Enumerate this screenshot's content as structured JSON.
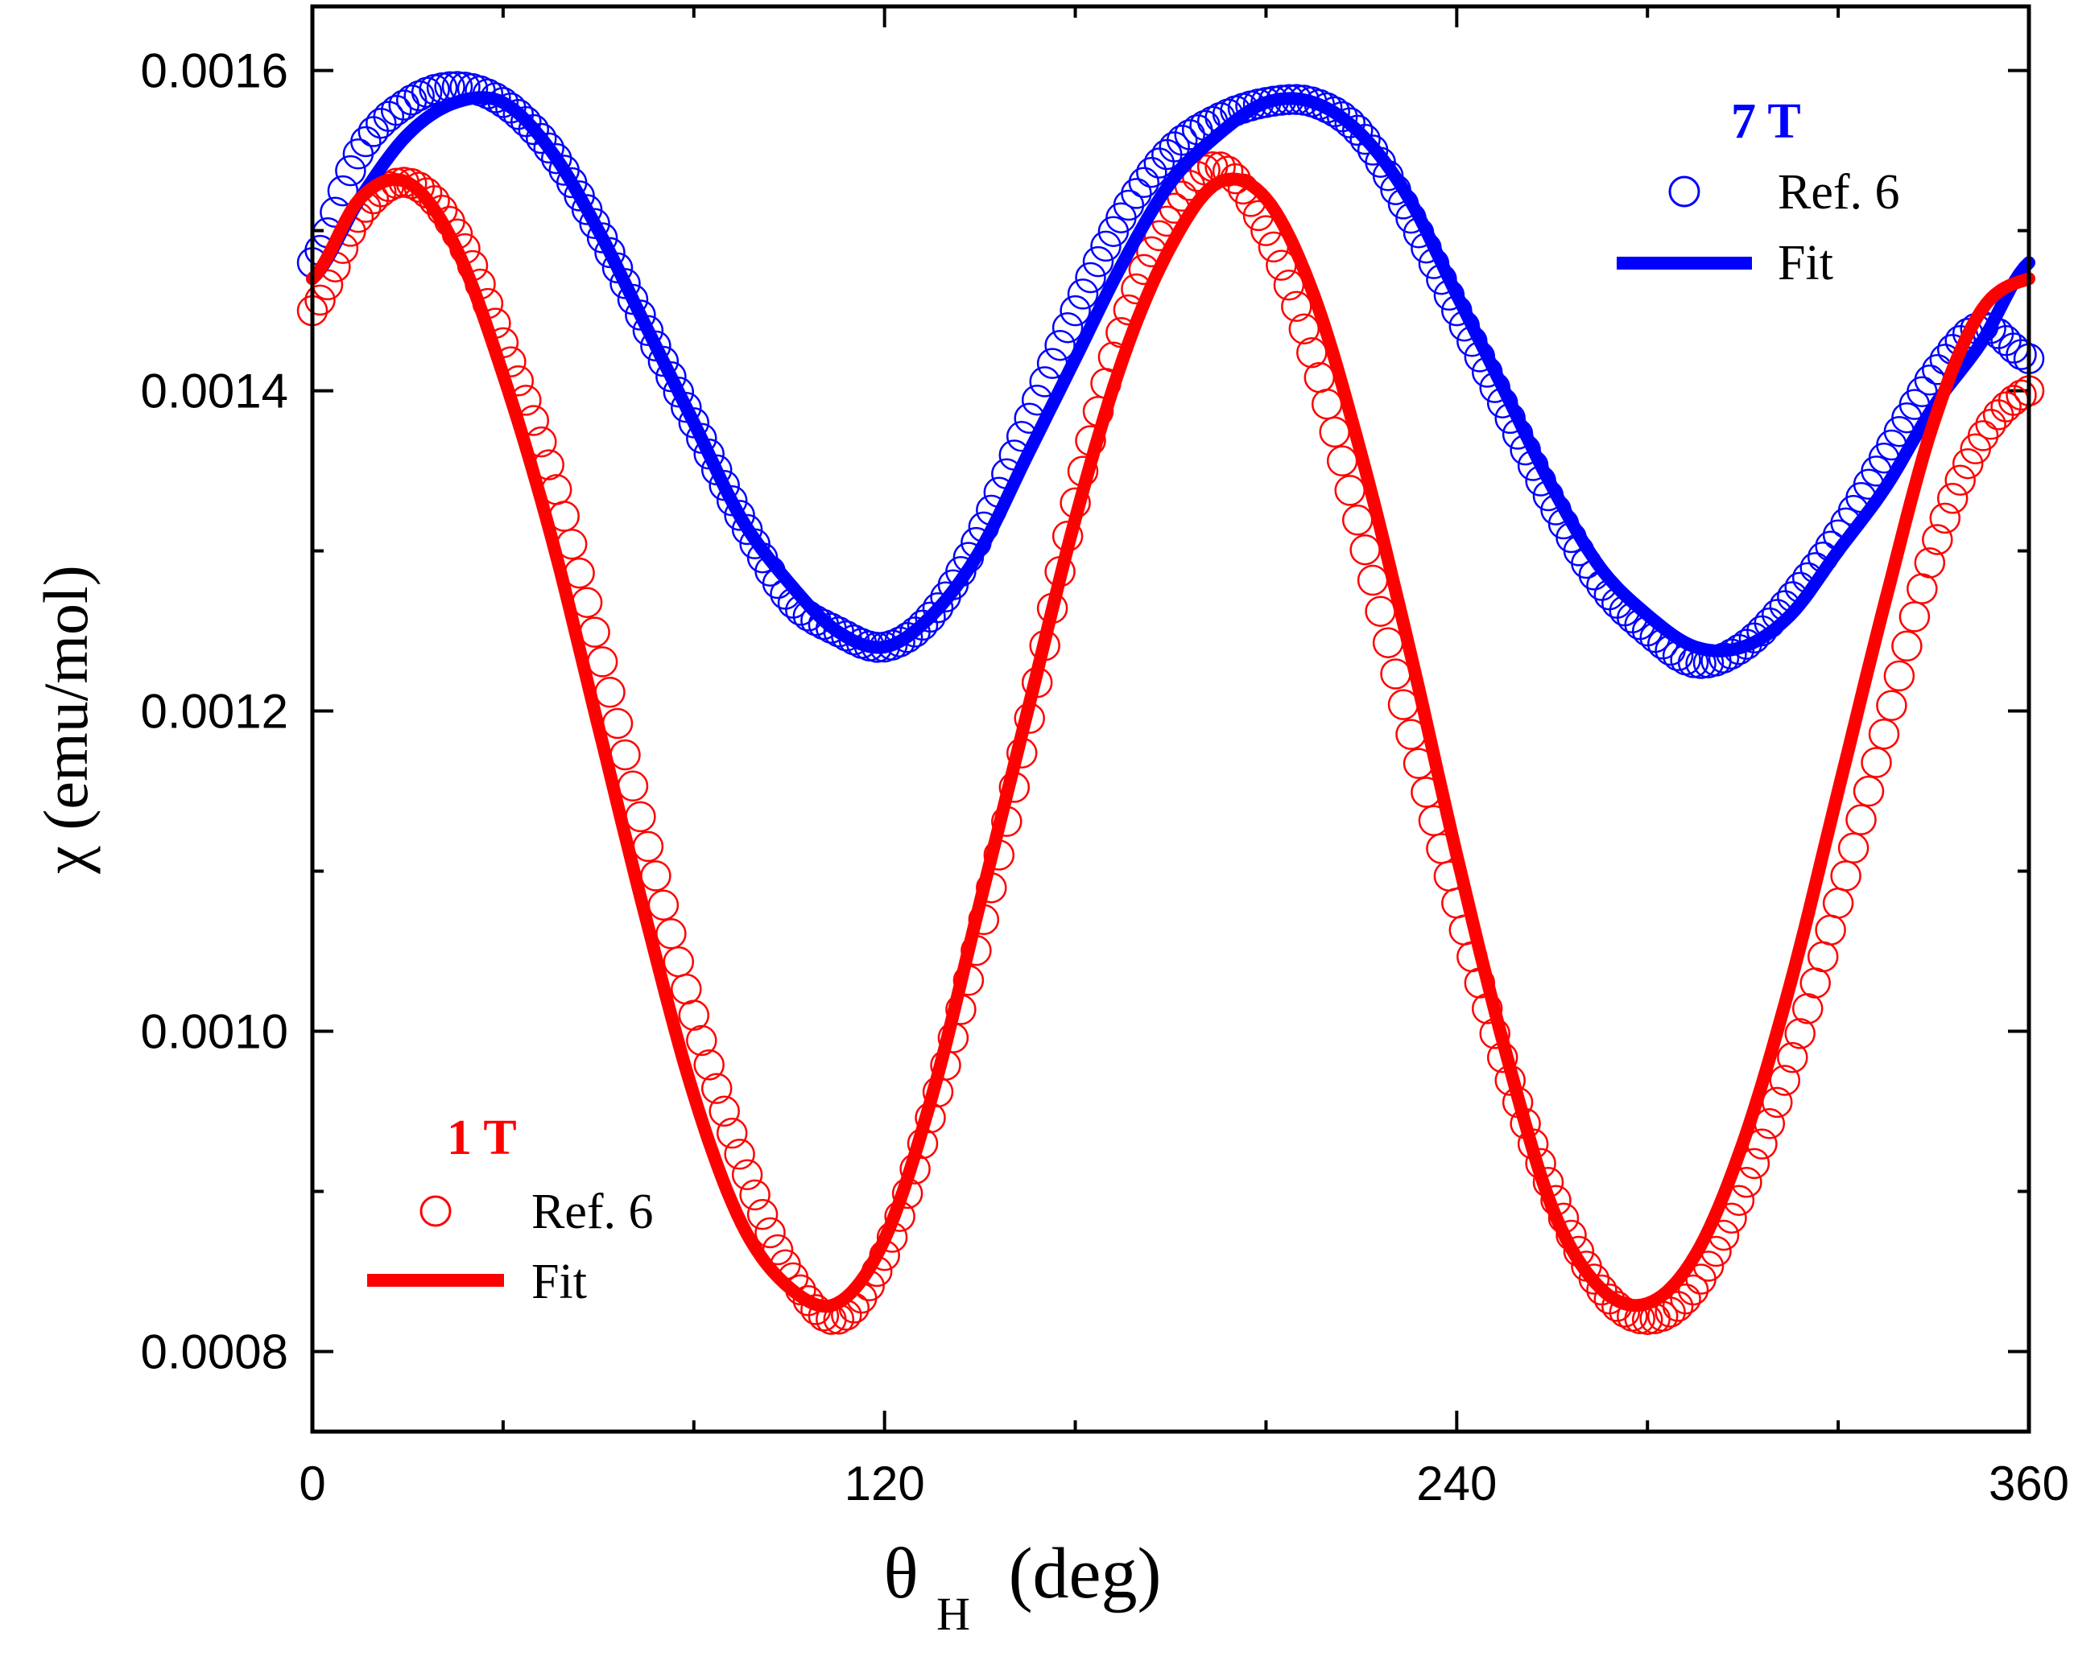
{
  "chart_data": {
    "type": "scatter",
    "title": "",
    "xlabel": "θ",
    "xlabel_sub": "H",
    "xlabel_unit": "(deg)",
    "ylabel": "χ (emu/mol)",
    "xlim": [
      0,
      360
    ],
    "ylim": [
      0.00075,
      0.00164
    ],
    "x_ticks": [
      0,
      120,
      240,
      360
    ],
    "x_tick_labels": [
      "0",
      "120",
      "240",
      "360"
    ],
    "y_ticks": [
      0.0008,
      0.001,
      0.0012,
      0.0014,
      0.0016
    ],
    "y_tick_labels": [
      "0.0008",
      "0.0010",
      "0.0012",
      "0.0014",
      "0.0016"
    ],
    "grid": false,
    "series": [
      {
        "name": "Ref. 6",
        "group": "7 T",
        "kind": "markers",
        "color": "#0000ff",
        "x": [
          0,
          10,
          20,
          30,
          40,
          50,
          60,
          70,
          80,
          90,
          100,
          110,
          120,
          130,
          140,
          150,
          160,
          170,
          180,
          190,
          200,
          210,
          220,
          230,
          240,
          250,
          260,
          270,
          280,
          290,
          300,
          310,
          320,
          330,
          340,
          350,
          360
        ],
        "y": [
          0.00148,
          0.00155,
          0.00158,
          0.00159,
          0.00158,
          0.00155,
          0.0015,
          0.00144,
          0.00138,
          0.00132,
          0.00127,
          0.00125,
          0.00124,
          0.00126,
          0.00131,
          0.00138,
          0.00145,
          0.00151,
          0.00155,
          0.00157,
          0.00158,
          0.00158,
          0.00156,
          0.00151,
          0.00145,
          0.00139,
          0.00133,
          0.00128,
          0.00125,
          0.00123,
          0.00124,
          0.00127,
          0.00131,
          0.00136,
          0.00141,
          0.00144,
          0.00142
        ]
      },
      {
        "name": "Fit",
        "group": "7 T",
        "kind": "line",
        "color": "#0000ff",
        "x": [
          0,
          10,
          20,
          30,
          40,
          50,
          60,
          70,
          80,
          90,
          100,
          110,
          120,
          130,
          140,
          150,
          160,
          170,
          180,
          190,
          200,
          210,
          220,
          230,
          240,
          250,
          260,
          270,
          280,
          290,
          300,
          310,
          320,
          330,
          340,
          350,
          360
        ],
        "y": [
          0.00147,
          0.00152,
          0.00156,
          0.00158,
          0.00158,
          0.00155,
          0.0015,
          0.00144,
          0.00138,
          0.00132,
          0.00128,
          0.00125,
          0.00124,
          0.00126,
          0.0013,
          0.00136,
          0.00142,
          0.00148,
          0.00153,
          0.00156,
          0.00158,
          0.00158,
          0.00156,
          0.00152,
          0.00146,
          0.0014,
          0.00134,
          0.00129,
          0.00126,
          0.00124,
          0.00124,
          0.00126,
          0.0013,
          0.00134,
          0.00139,
          0.00143,
          0.00148
        ]
      },
      {
        "name": "Ref. 6",
        "group": "1 T",
        "kind": "markers",
        "color": "#ff0000",
        "x": [
          0,
          10,
          20,
          30,
          40,
          50,
          60,
          70,
          80,
          90,
          100,
          110,
          120,
          130,
          140,
          150,
          160,
          170,
          180,
          190,
          200,
          210,
          220,
          230,
          240,
          250,
          260,
          270,
          280,
          290,
          300,
          310,
          320,
          330,
          340,
          350,
          360
        ],
        "y": [
          0.00145,
          0.00151,
          0.00153,
          0.0015,
          0.00143,
          0.00135,
          0.00124,
          0.00112,
          0.00101,
          0.00092,
          0.00085,
          0.00082,
          0.00086,
          0.00095,
          0.00106,
          0.00119,
          0.00133,
          0.00144,
          0.00151,
          0.00154,
          0.0015,
          0.00142,
          0.00131,
          0.00119,
          0.00108,
          0.00098,
          0.0009,
          0.00084,
          0.00082,
          0.00084,
          0.0009,
          0.00098,
          0.00108,
          0.00119,
          0.0013,
          0.00137,
          0.0014
        ]
      },
      {
        "name": "Fit",
        "group": "1 T",
        "kind": "line",
        "color": "#ff0000",
        "x": [
          0,
          10,
          20,
          30,
          40,
          50,
          60,
          70,
          80,
          90,
          100,
          110,
          120,
          130,
          140,
          150,
          160,
          170,
          180,
          190,
          200,
          210,
          220,
          230,
          240,
          250,
          260,
          270,
          280,
          290,
          300,
          310,
          320,
          330,
          340,
          350,
          360
        ],
        "y": [
          0.00147,
          0.00152,
          0.00153,
          0.00149,
          0.00141,
          0.00131,
          0.00119,
          0.00107,
          0.00096,
          0.00088,
          0.00084,
          0.00083,
          0.00087,
          0.00096,
          0.00108,
          0.0012,
          0.00132,
          0.00142,
          0.00149,
          0.00153,
          0.00152,
          0.00146,
          0.00136,
          0.00124,
          0.00111,
          0.00099,
          0.00089,
          0.00084,
          0.00083,
          0.00086,
          0.00093,
          0.00103,
          0.00115,
          0.00127,
          0.00138,
          0.00145,
          0.00147
        ]
      }
    ],
    "legends": [
      {
        "title": "7 T",
        "title_color": "#0000ff",
        "placement": "top-right",
        "marker_label": "Ref. 6",
        "line_label": "Fit"
      },
      {
        "title": "1 T",
        "title_color": "#ff0000",
        "placement": "bottom-left",
        "marker_label": "Ref. 6",
        "line_label": "Fit"
      }
    ]
  }
}
